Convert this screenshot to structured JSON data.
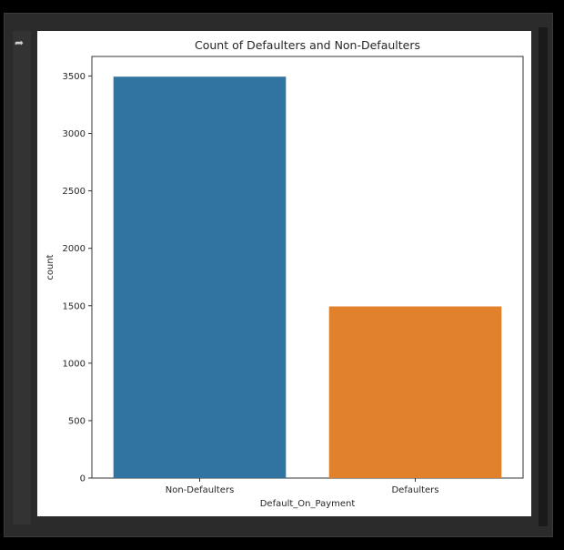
{
  "cell": {
    "output_icon": "output-arrow-icon"
  },
  "chart_data": {
    "type": "bar",
    "title": "Count of Defaulters and Non-Defaulters",
    "xlabel": "Default_On_Payment",
    "ylabel": "count",
    "categories": [
      "Non-Defaulters",
      "Defaulters"
    ],
    "values": [
      3494,
      1494
    ],
    "colors": [
      "#3274a1",
      "#e1812c"
    ],
    "ylim": [
      0,
      3670
    ],
    "yticks": [
      0,
      500,
      1000,
      1500,
      2000,
      2500,
      3000,
      3500
    ],
    "grid": false
  }
}
